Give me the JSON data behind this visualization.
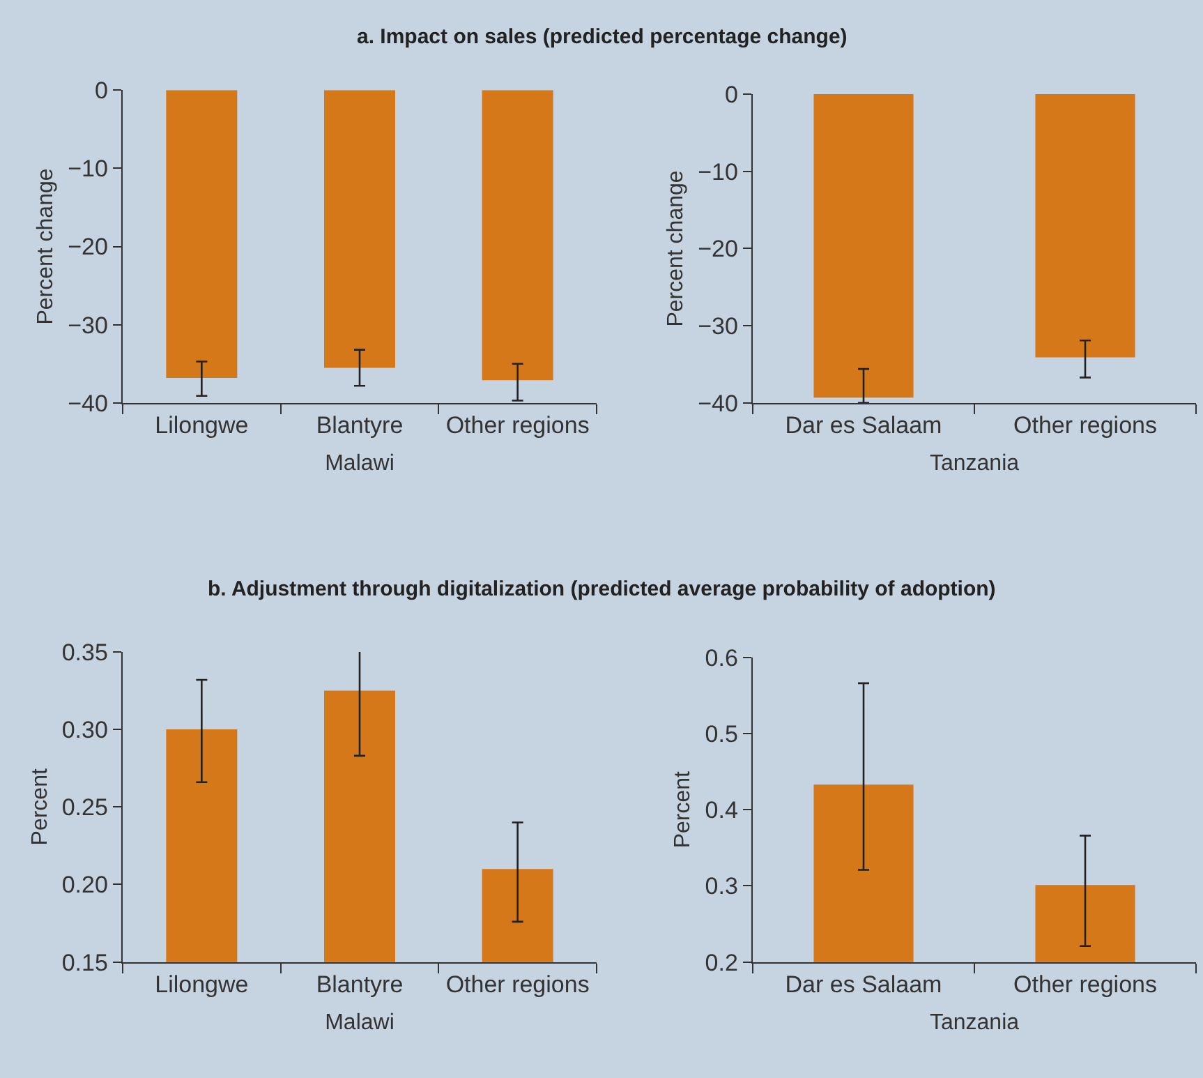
{
  "chart_data": [
    {
      "type": "bar",
      "title": "a. Impact on sales (predicted percentage change)",
      "xlabel": "Malawi",
      "ylabel": "Percent change",
      "categories": [
        "Lilongwe",
        "Blantyre",
        "Other regions"
      ],
      "series": [
        {
          "color": "#d5781a",
          "values": [
            -36.8,
            -35.5,
            -37.1
          ],
          "errors": [
            [
              -39.1,
              -34.7
            ],
            [
              -37.8,
              -33.2
            ],
            [
              -39.7,
              -35.0
            ]
          ]
        }
      ],
      "ylim": [
        -40,
        0
      ],
      "yticks": [
        {
          "value": -40,
          "label": "−40"
        },
        {
          "value": -30,
          "label": "−30"
        },
        {
          "value": -20,
          "label": "−20"
        },
        {
          "value": -10,
          "label": "−10"
        },
        0
      ],
      "grid": false
    },
    {
      "type": "bar",
      "xlabel": "Tanzania",
      "ylabel": "Percent change",
      "categories": [
        "Dar es Salaam",
        "Other regions"
      ],
      "series": [
        {
          "color": "#d5781a",
          "values": [
            -39.3,
            -34.1
          ],
          "errors": [
            [
              -40.0,
              -35.6
            ],
            [
              -36.7,
              -31.9
            ]
          ]
        }
      ],
      "ylim": [
        -40,
        0
      ],
      "yticks": [
        {
          "value": -40,
          "label": "−40"
        },
        {
          "value": -30,
          "label": "−30"
        },
        {
          "value": -20,
          "label": "−20"
        },
        {
          "value": -10,
          "label": "−10"
        },
        0
      ],
      "grid": false
    },
    {
      "type": "bar",
      "title": "b. Adjustment through digitalization (predicted average probability of adoption)",
      "xlabel": "Malawi",
      "ylabel": "Percent",
      "categories": [
        "Lilongwe",
        "Blantyre",
        "Other regions"
      ],
      "series": [
        {
          "color": "#d5781a",
          "values": [
            0.3,
            0.325,
            0.21
          ],
          "errors": [
            [
              0.266,
              0.332
            ],
            [
              0.283,
              0.352
            ],
            [
              0.176,
              0.24
            ]
          ]
        }
      ],
      "ylim": [
        0.15,
        0.35
      ],
      "yticks": [
        {
          "value": 0.15,
          "label": "0.15"
        },
        {
          "value": 0.2,
          "label": "0.20"
        },
        {
          "value": 0.25,
          "label": "0.25"
        },
        {
          "value": 0.3,
          "label": "0.30"
        },
        {
          "value": 0.35,
          "label": "0.35"
        }
      ],
      "grid": false
    },
    {
      "type": "bar",
      "xlabel": "Tanzania",
      "ylabel": "Percent",
      "categories": [
        "Dar es Salaam",
        "Other regions"
      ],
      "series": [
        {
          "color": "#d5781a",
          "values": [
            0.433,
            0.301
          ],
          "errors": [
            [
              0.321,
              0.566
            ],
            [
              0.221,
              0.366
            ]
          ]
        }
      ],
      "ylim": [
        0.2,
        0.6
      ],
      "yticks": [
        0.2,
        0.3,
        0.4,
        0.5,
        0.6
      ],
      "grid": false
    }
  ]
}
